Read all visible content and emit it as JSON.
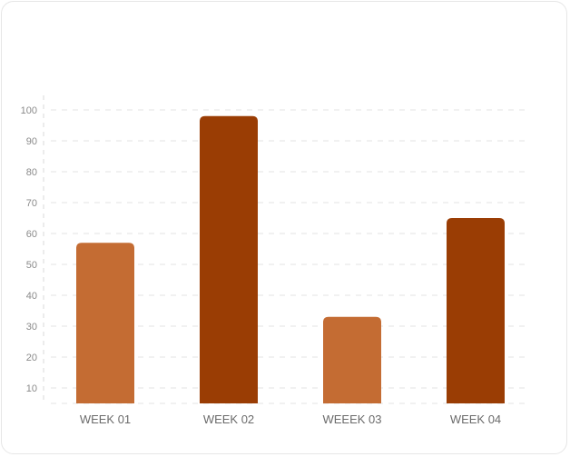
{
  "chart_data": {
    "type": "bar",
    "categories": [
      "WEEK 01",
      "WEEK 02",
      "WEEEK 03",
      "WEEK 04"
    ],
    "values": [
      57,
      98,
      33,
      65
    ],
    "colors": [
      "#C46C33",
      "#9A3D04",
      "#C46C33",
      "#9A3D04"
    ],
    "ylim": [
      5,
      105
    ],
    "yticks": [
      10,
      20,
      30,
      40,
      50,
      60,
      70,
      80,
      90,
      100
    ],
    "grid": true,
    "title": "",
    "xlabel": "",
    "ylabel": ""
  }
}
